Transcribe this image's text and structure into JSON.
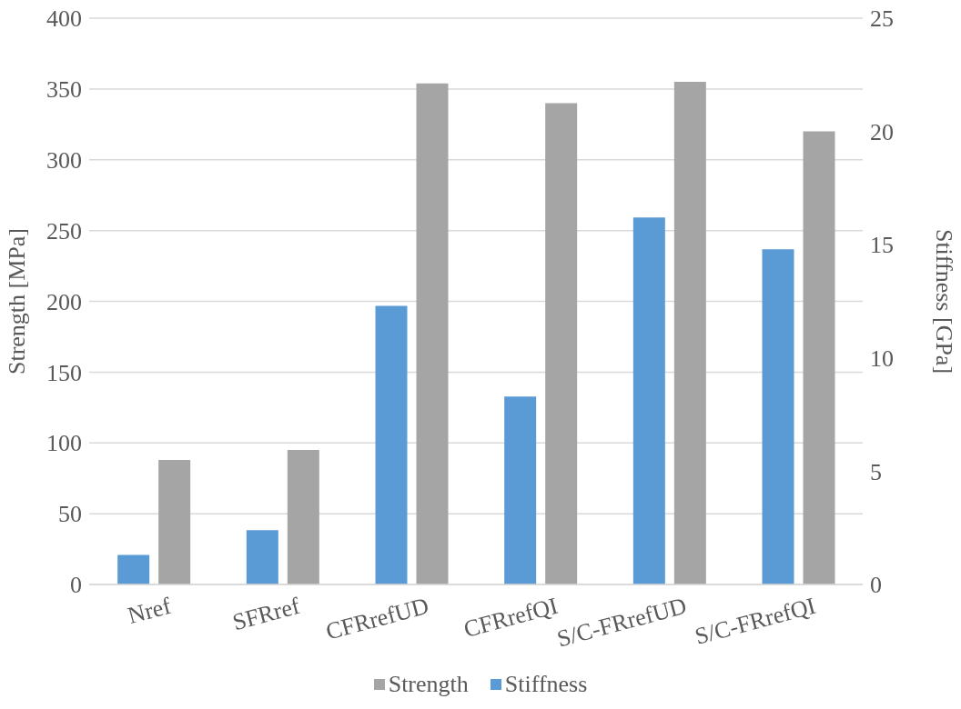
{
  "chart_data": {
    "type": "bar",
    "categories": [
      "Nref",
      "SFRref",
      "CFRrefUD",
      "CFRrefQI",
      "S/C-FRrefUD",
      "S/C-FRrefQI"
    ],
    "ylabel": "Strength [MPa]",
    "y2label": "Stiffness [GPa]",
    "series": [
      {
        "name": "Strength",
        "color": "#a5a5a5",
        "values": [
          88,
          95,
          354,
          340,
          355,
          320
        ]
      },
      {
        "name": "Stiffness",
        "color": "#5b9bd5",
        "axis": "y2",
        "values": [
          1.3,
          2.4,
          12.3,
          8.3,
          16.2,
          14.8
        ]
      }
    ],
    "ylim": [
      0,
      400
    ],
    "yticks": [
      0,
      50,
      100,
      150,
      200,
      250,
      300,
      350,
      400
    ],
    "y2lim": [
      0,
      25
    ],
    "y2ticks": [
      0,
      5,
      10,
      15,
      20,
      25
    ],
    "grid": "y",
    "legend": "bottom"
  }
}
